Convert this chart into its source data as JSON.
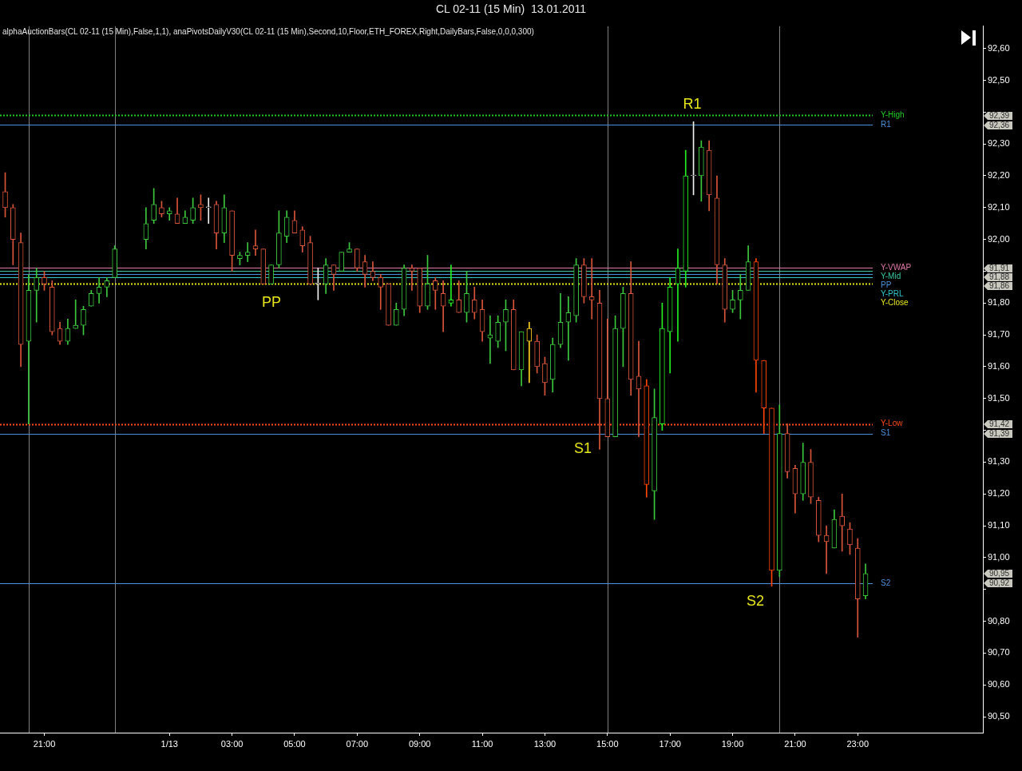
{
  "chart_data": {
    "type": "candlestick",
    "title": "CL 02-11 (15 Min)  13.01.2011",
    "subtitle": "alphaAuctionBars(CL 02-11 (15 Min),False,1,1), anaPivotsDailyV30(CL 02-11 (15 Min),Second,10,Floor,ETH_FOREX,Right,DailyBars,False,0,0,0,300)",
    "x": [
      "2011-01-12T19:45",
      "2011-01-12T20:00",
      "2011-01-12T20:15",
      "2011-01-12T20:30",
      "2011-01-12T20:45",
      "2011-01-12T21:00",
      "2011-01-12T21:15",
      "2011-01-12T21:30",
      "2011-01-12T21:45",
      "2011-01-12T22:00",
      "2011-01-12T22:15",
      "2011-01-12T22:30",
      "2011-01-12T22:45",
      "2011-01-12T23:00",
      "2011-01-12T23:15",
      "2011-01-13T00:15",
      "2011-01-13T00:30",
      "2011-01-13T00:45",
      "2011-01-13T01:00",
      "2011-01-13T01:15",
      "2011-01-13T01:30",
      "2011-01-13T01:45",
      "2011-01-13T02:00",
      "2011-01-13T02:15",
      "2011-01-13T02:30",
      "2011-01-13T02:45",
      "2011-01-13T03:00",
      "2011-01-13T03:15",
      "2011-01-13T03:30",
      "2011-01-13T03:45",
      "2011-01-13T04:00",
      "2011-01-13T04:15",
      "2011-01-13T04:30",
      "2011-01-13T04:45",
      "2011-01-13T05:00",
      "2011-01-13T05:15",
      "2011-01-13T05:30",
      "2011-01-13T05:45",
      "2011-01-13T06:00",
      "2011-01-13T06:15",
      "2011-01-13T06:30",
      "2011-01-13T06:45",
      "2011-01-13T07:00",
      "2011-01-13T07:15",
      "2011-01-13T07:30",
      "2011-01-13T07:45",
      "2011-01-13T08:00",
      "2011-01-13T08:15",
      "2011-01-13T08:30",
      "2011-01-13T08:45",
      "2011-01-13T09:00",
      "2011-01-13T09:15",
      "2011-01-13T09:30",
      "2011-01-13T09:45",
      "2011-01-13T10:00",
      "2011-01-13T10:15",
      "2011-01-13T10:30",
      "2011-01-13T10:45",
      "2011-01-13T11:00",
      "2011-01-13T11:15",
      "2011-01-13T11:30",
      "2011-01-13T11:45",
      "2011-01-13T12:00",
      "2011-01-13T12:15",
      "2011-01-13T12:30",
      "2011-01-13T12:45",
      "2011-01-13T13:00",
      "2011-01-13T13:15",
      "2011-01-13T13:30",
      "2011-01-13T13:45",
      "2011-01-13T14:00",
      "2011-01-13T14:15",
      "2011-01-13T14:30",
      "2011-01-13T14:45",
      "2011-01-13T15:00",
      "2011-01-13T15:15",
      "2011-01-13T15:30",
      "2011-01-13T15:45",
      "2011-01-13T16:00",
      "2011-01-13T16:15",
      "2011-01-13T16:30",
      "2011-01-13T16:45",
      "2011-01-13T17:00",
      "2011-01-13T17:15",
      "2011-01-13T17:30",
      "2011-01-13T17:45",
      "2011-01-13T18:00",
      "2011-01-13T18:15",
      "2011-01-13T18:30",
      "2011-01-13T18:45",
      "2011-01-13T19:00",
      "2011-01-13T19:15",
      "2011-01-13T19:30",
      "2011-01-13T19:45",
      "2011-01-13T20:00",
      "2011-01-13T20:15",
      "2011-01-13T20:30",
      "2011-01-13T20:45",
      "2011-01-13T21:00",
      "2011-01-13T21:15",
      "2011-01-13T21:30",
      "2011-01-13T21:45",
      "2011-01-13T22:00",
      "2011-01-13T22:15",
      "2011-01-13T22:30",
      "2011-01-13T22:45",
      "2011-01-13T23:00",
      "2011-01-13T23:15"
    ],
    "ohlc": [
      [
        92.15,
        92.21,
        92.07,
        92.1
      ],
      [
        92.1,
        92.11,
        91.92,
        92.0
      ],
      [
        91.99,
        92.02,
        91.6,
        91.67
      ],
      [
        91.68,
        91.89,
        91.42,
        91.84
      ],
      [
        91.84,
        91.91,
        91.74,
        91.88
      ],
      [
        91.88,
        91.9,
        91.84,
        91.86
      ],
      [
        91.85,
        91.87,
        91.7,
        91.71
      ],
      [
        91.72,
        91.74,
        91.67,
        91.68
      ],
      [
        91.68,
        91.75,
        91.67,
        91.72
      ],
      [
        91.72,
        91.81,
        91.72,
        91.73
      ],
      [
        91.73,
        91.79,
        91.7,
        91.78
      ],
      [
        91.79,
        91.84,
        91.79,
        91.83
      ],
      [
        91.83,
        91.88,
        91.8,
        91.85
      ],
      [
        91.85,
        91.88,
        91.82,
        91.87
      ],
      [
        91.88,
        91.98,
        91.88,
        91.97
      ],
      [
        92.0,
        92.1,
        91.97,
        92.05
      ],
      [
        92.06,
        92.16,
        92.05,
        92.11
      ],
      [
        92.1,
        92.12,
        92.07,
        92.08
      ],
      [
        92.08,
        92.1,
        92.06,
        92.09
      ],
      [
        92.08,
        92.13,
        92.05,
        92.05
      ],
      [
        92.05,
        92.09,
        92.05,
        92.07
      ],
      [
        92.06,
        92.13,
        92.05,
        92.1
      ],
      [
        92.11,
        92.14,
        92.06,
        92.1
      ],
      [
        92.1,
        92.13,
        92.05,
        92.1
      ],
      [
        92.11,
        92.12,
        91.97,
        92.02
      ],
      [
        92.02,
        92.14,
        91.99,
        92.1
      ],
      [
        92.09,
        92.09,
        91.9,
        91.95
      ],
      [
        91.94,
        91.96,
        91.92,
        91.95
      ],
      [
        91.95,
        91.99,
        91.93,
        91.96
      ],
      [
        91.98,
        92.03,
        91.95,
        91.97
      ],
      [
        91.97,
        91.97,
        91.86,
        91.86
      ],
      [
        91.86,
        91.92,
        91.86,
        91.92
      ],
      [
        91.92,
        92.09,
        91.91,
        92.02
      ],
      [
        92.01,
        92.09,
        91.99,
        92.07
      ],
      [
        92.06,
        92.09,
        92.02,
        92.02
      ],
      [
        92.03,
        92.04,
        91.96,
        91.98
      ],
      [
        91.99,
        92.01,
        91.86,
        91.86
      ],
      [
        91.86,
        91.91,
        91.81,
        91.86
      ],
      [
        91.86,
        91.94,
        91.83,
        91.92
      ],
      [
        91.92,
        91.92,
        91.84,
        91.89
      ],
      [
        91.9,
        91.96,
        91.9,
        91.96
      ],
      [
        91.96,
        91.99,
        91.96,
        91.97
      ],
      [
        91.97,
        91.97,
        91.9,
        91.91
      ],
      [
        91.93,
        91.95,
        91.85,
        91.89
      ],
      [
        91.9,
        91.93,
        91.87,
        91.88
      ],
      [
        91.88,
        91.89,
        91.78,
        91.85
      ],
      [
        91.86,
        91.86,
        91.73,
        91.73
      ],
      [
        91.73,
        91.8,
        91.73,
        91.78
      ],
      [
        91.78,
        91.92,
        91.76,
        91.91
      ],
      [
        91.91,
        91.92,
        91.84,
        91.9
      ],
      [
        91.91,
        91.91,
        91.77,
        91.79
      ],
      [
        91.79,
        91.95,
        91.78,
        91.86
      ],
      [
        91.87,
        91.88,
        91.78,
        91.84
      ],
      [
        91.83,
        91.87,
        91.71,
        91.79
      ],
      [
        91.8,
        91.92,
        91.79,
        91.81
      ],
      [
        91.81,
        91.87,
        91.77,
        91.77
      ],
      [
        91.77,
        91.9,
        91.74,
        91.83
      ],
      [
        91.81,
        91.85,
        91.75,
        91.77
      ],
      [
        91.78,
        91.81,
        91.68,
        91.71
      ],
      [
        91.69,
        91.76,
        91.61,
        91.7
      ],
      [
        91.68,
        91.76,
        91.66,
        91.74
      ],
      [
        91.74,
        91.81,
        91.65,
        91.78
      ],
      [
        91.78,
        91.81,
        91.59,
        91.59
      ],
      [
        91.59,
        91.71,
        91.54,
        91.71
      ],
      [
        91.72,
        91.74,
        91.55,
        91.68
      ],
      [
        91.68,
        91.7,
        91.58,
        91.6
      ],
      [
        91.61,
        91.63,
        91.51,
        91.55
      ],
      [
        91.56,
        91.69,
        91.52,
        91.67
      ],
      [
        91.67,
        91.83,
        91.66,
        91.74
      ],
      [
        91.74,
        91.82,
        91.62,
        91.77
      ],
      [
        91.76,
        91.94,
        91.74,
        91.92
      ],
      [
        91.92,
        91.94,
        91.8,
        91.82
      ],
      [
        91.82,
        91.94,
        91.75,
        91.81
      ],
      [
        91.8,
        91.84,
        91.34,
        91.5
      ],
      [
        91.5,
        91.75,
        91.38,
        91.38
      ],
      [
        91.38,
        91.76,
        91.38,
        91.72
      ],
      [
        91.72,
        91.85,
        91.6,
        91.83
      ],
      [
        91.83,
        91.93,
        91.51,
        91.56
      ],
      [
        91.57,
        91.68,
        91.38,
        91.53
      ],
      [
        91.54,
        91.56,
        91.19,
        91.23
      ],
      [
        91.21,
        91.53,
        91.12,
        91.44
      ],
      [
        91.42,
        91.8,
        91.4,
        91.72
      ],
      [
        91.71,
        91.88,
        91.58,
        91.85
      ],
      [
        91.86,
        91.97,
        91.68,
        91.91
      ],
      [
        91.9,
        92.28,
        91.85,
        92.2
      ],
      [
        92.2,
        92.37,
        92.14,
        92.2
      ],
      [
        92.2,
        92.31,
        92.12,
        92.29
      ],
      [
        92.28,
        92.31,
        92.09,
        92.14
      ],
      [
        92.13,
        92.2,
        91.86,
        91.92
      ],
      [
        91.92,
        91.94,
        91.74,
        91.78
      ],
      [
        91.78,
        91.84,
        91.77,
        91.81
      ],
      [
        91.81,
        91.89,
        91.75,
        91.84
      ],
      [
        91.84,
        91.98,
        91.84,
        91.93
      ],
      [
        91.93,
        91.94,
        91.52,
        91.62
      ],
      [
        91.62,
        91.62,
        91.39,
        91.47
      ],
      [
        91.47,
        91.47,
        90.91,
        90.96
      ],
      [
        90.96,
        91.48,
        90.94,
        91.39
      ],
      [
        91.39,
        91.42,
        91.25,
        91.27
      ],
      [
        91.28,
        91.29,
        91.14,
        91.2
      ],
      [
        91.2,
        91.36,
        91.18,
        91.3
      ],
      [
        91.3,
        91.34,
        91.17,
        91.19
      ],
      [
        91.18,
        91.19,
        91.05,
        91.07
      ],
      [
        91.07,
        91.1,
        90.95,
        91.05
      ],
      [
        91.03,
        91.15,
        91.03,
        91.12
      ],
      [
        91.13,
        91.2,
        91.02,
        91.1
      ],
      [
        91.09,
        91.11,
        91.01,
        91.04
      ],
      [
        91.03,
        91.06,
        90.75,
        90.87
      ],
      [
        90.88,
        90.98,
        90.87,
        90.95
      ]
    ],
    "colors": [
      "#d9553a",
      "#d9553a",
      "#d9553a",
      "#3cc83c",
      "#3cc83c",
      "#d9553a",
      "#d9553a",
      "#d9553a",
      "#3cc83c",
      "#3cc83c",
      "#3cc83c",
      "#3cc83c",
      "#3cc83c",
      "#3cc83c",
      "#3cc83c",
      "#3cc83c",
      "#3cc83c",
      "#d9553a",
      "#3cc83c",
      "#d9553a",
      "#3cc83c",
      "#3cc83c",
      "#d9553a",
      "#f0f0f0",
      "#d9553a",
      "#3cc83c",
      "#d9553a",
      "#3cc83c",
      "#3cc83c",
      "#d9553a",
      "#d9553a",
      "#3cc83c",
      "#3cc83c",
      "#3cc83c",
      "#d9553a",
      "#d9553a",
      "#d9553a",
      "#f0f0f0",
      "#3cc83c",
      "#d9553a",
      "#3cc83c",
      "#3cc83c",
      "#d9553a",
      "#d9553a",
      "#d9553a",
      "#d9553a",
      "#d9553a",
      "#3cc83c",
      "#3cc83c",
      "#d9553a",
      "#d9553a",
      "#3cc83c",
      "#d9553a",
      "#d9553a",
      "#22ee22",
      "#d9553a",
      "#3cc83c",
      "#d9553a",
      "#d9553a",
      "#3cc83c",
      "#3cc83c",
      "#3cc83c",
      "#d9553a",
      "#3cc83c",
      "#ffd21e",
      "#d9553a",
      "#d9553a",
      "#3cc83c",
      "#3cc83c",
      "#3cc83c",
      "#3cc83c",
      "#d9553a",
      "#d9553a",
      "#d9553a",
      "#d9553a",
      "#3cc83c",
      "#3cc83c",
      "#d9553a",
      "#d9553a",
      "#ff4500",
      "#3cc83c",
      "#22ee22",
      "#22ee22",
      "#22ee22",
      "#22ee22",
      "#f0f0f0",
      "#3cc83c",
      "#d9553a",
      "#d9553a",
      "#d9553a",
      "#3cc83c",
      "#3cc83c",
      "#3cc83c",
      "#ff4500",
      "#ff4500",
      "#ff4500",
      "#3cc83c",
      "#d9553a",
      "#d9553a",
      "#3cc83c",
      "#d9553a",
      "#d9553a",
      "#d9553a",
      "#3cc83c",
      "#d9553a",
      "#d9553a",
      "#d9553a",
      "#3cc83c"
    ],
    "xlim": [
      "2011-01-12T19:35",
      "2011-01-14T03:00"
    ],
    "xticks": [
      {
        "value": "2011-01-12T21:00",
        "label": "21:00"
      },
      {
        "value": "2011-01-13T01:00",
        "label": "1/13"
      },
      {
        "value": "2011-01-13T03:00",
        "label": "03:00"
      },
      {
        "value": "2011-01-13T05:00",
        "label": "05:00"
      },
      {
        "value": "2011-01-13T07:00",
        "label": "07:00"
      },
      {
        "value": "2011-01-13T09:00",
        "label": "09:00"
      },
      {
        "value": "2011-01-13T11:00",
        "label": "11:00"
      },
      {
        "value": "2011-01-13T13:00",
        "label": "13:00"
      },
      {
        "value": "2011-01-13T15:00",
        "label": "15:00"
      },
      {
        "value": "2011-01-13T17:00",
        "label": "17:00"
      },
      {
        "value": "2011-01-13T19:00",
        "label": "19:00"
      },
      {
        "value": "2011-01-13T21:00",
        "label": "21:00"
      },
      {
        "value": "2011-01-13T23:00",
        "label": "23:00"
      }
    ],
    "ylim": [
      90.45,
      92.67
    ],
    "yticks": [
      {
        "value": 90.5,
        "label": "90,50"
      },
      {
        "value": 90.6,
        "label": "90,60"
      },
      {
        "value": 90.7,
        "label": "90,70"
      },
      {
        "value": 90.8,
        "label": "90,80"
      },
      {
        "value": 90.9,
        "label": null
      },
      {
        "value": 91.0,
        "label": "91,00"
      },
      {
        "value": 91.1,
        "label": "91,10"
      },
      {
        "value": 91.2,
        "label": "91,20"
      },
      {
        "value": 91.3,
        "label": "91,30"
      },
      {
        "value": 91.4,
        "label": null
      },
      {
        "value": 91.5,
        "label": "91,50"
      },
      {
        "value": 91.6,
        "label": "91,60"
      },
      {
        "value": 91.7,
        "label": "91,70"
      },
      {
        "value": 91.8,
        "label": "91,80"
      },
      {
        "value": 91.9,
        "label": null
      },
      {
        "value": 92.0,
        "label": "92,00"
      },
      {
        "value": 92.1,
        "label": "92,10"
      },
      {
        "value": 92.2,
        "label": "92,20"
      },
      {
        "value": 92.3,
        "label": "92,30"
      },
      {
        "value": 92.4,
        "label": null
      },
      {
        "value": 92.5,
        "label": "92,50"
      },
      {
        "value": 92.6,
        "label": "92,60"
      }
    ],
    "ref_lines": [
      {
        "axis": "x",
        "value": "2011-01-12T20:30",
        "color": "#808080"
      },
      {
        "axis": "x",
        "value": "2011-01-12T23:15",
        "color": "#808080"
      },
      {
        "axis": "x",
        "value": "2011-01-13T15:00",
        "color": "#808080"
      },
      {
        "axis": "x",
        "value": "2011-01-13T20:30",
        "color": "#808080"
      },
      {
        "axis": "y",
        "value": 92.39,
        "label": "Y-High",
        "color": "#22cc22",
        "line_style": "dotted"
      },
      {
        "axis": "y",
        "value": 92.36,
        "label": "R1",
        "color": "#4a90d9"
      },
      {
        "axis": "y",
        "value": 91.91,
        "label": "Y-VWAP",
        "color": "#e078a8"
      },
      {
        "axis": "y",
        "value": 91.9,
        "label": "Y-Mid",
        "color": "#3cc8a0"
      },
      {
        "axis": "y",
        "value": 91.89,
        "label": "PP",
        "color": "#4a90d9"
      },
      {
        "axis": "y",
        "value": 91.88,
        "label": "Y-PRL",
        "color": "#30c8c8"
      },
      {
        "axis": "y",
        "value": 91.86,
        "label": "Y-Close",
        "color": "#e6e61e",
        "line_style": "dotted"
      },
      {
        "axis": "y",
        "value": 91.42,
        "label": "Y-Low",
        "color": "#ff4a1a",
        "line_style": "dotted"
      },
      {
        "axis": "y",
        "value": 91.39,
        "label": "S1",
        "color": "#4a90d9"
      },
      {
        "axis": "y",
        "value": 90.92,
        "label": "S2",
        "color": "#4a90d9"
      }
    ],
    "annotations": [
      "R1",
      "PP",
      "S1",
      "S2",
      "92,39",
      "92,36",
      "91,91",
      "91,88",
      "91,86",
      "91,42",
      "91,39",
      "90,95",
      "90,92"
    ]
  }
}
